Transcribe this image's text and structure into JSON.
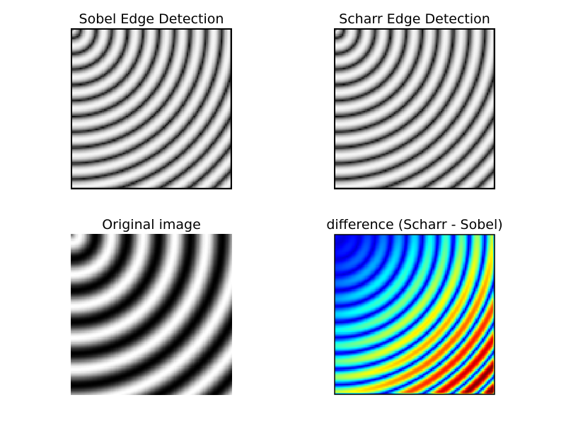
{
  "figure": {
    "background": "#ffffff",
    "panels": [
      {
        "id": "sobel",
        "title": "Sobel Edge Detection",
        "content": "sobel-edge-magnitude",
        "colormap": "gray",
        "frame": true
      },
      {
        "id": "scharr",
        "title": "Scharr Edge Detection",
        "content": "scharr-edge-magnitude",
        "colormap": "gray",
        "frame": true
      },
      {
        "id": "original",
        "title": "Original image",
        "content": "concentric-rings",
        "colormap": "gray",
        "frame": false
      },
      {
        "id": "difference",
        "title": "difference (Scharr - Sobel)",
        "content": "edge-difference",
        "colormap": "jet",
        "frame": true
      }
    ]
  }
}
